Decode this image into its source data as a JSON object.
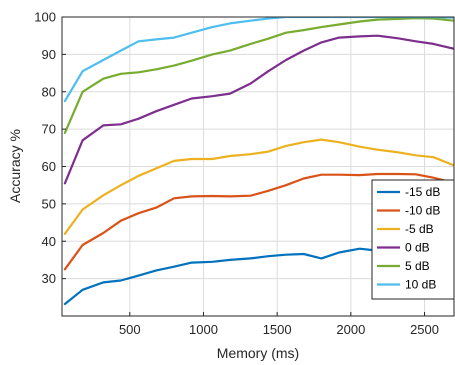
{
  "chart_data": {
    "type": "line",
    "title": "",
    "xlabel": "Memory (ms)",
    "ylabel": "Accuracy %",
    "xlim": [
      40,
      2700
    ],
    "ylim": [
      20,
      100
    ],
    "xticks": [
      500,
      1000,
      1500,
      2000,
      2500
    ],
    "yticks": [
      30,
      40,
      50,
      60,
      70,
      80,
      90,
      100
    ],
    "grid": true,
    "legend_position": "bottom-right",
    "x": [
      60,
      180,
      320,
      440,
      560,
      680,
      800,
      920,
      1060,
      1180,
      1320,
      1440,
      1560,
      1680,
      1800,
      1920,
      2060,
      2180,
      2320,
      2440,
      2560,
      2700
    ],
    "series": [
      {
        "name": "-15 dB",
        "color": "#0072BD",
        "values": [
          23.2,
          27.0,
          29.0,
          29.5,
          30.8,
          32.2,
          33.2,
          34.3,
          34.5,
          35.0,
          35.4,
          36.0,
          36.4,
          36.6,
          35.4,
          37.0,
          38.0,
          37.5,
          37.8,
          38.0,
          37.5,
          37.0
        ]
      },
      {
        "name": "-10 dB",
        "color": "#D95319",
        "values": [
          32.5,
          39.0,
          42.2,
          45.5,
          47.5,
          49.0,
          51.5,
          52.0,
          52.1,
          52.0,
          52.2,
          53.5,
          55.0,
          56.8,
          57.8,
          57.8,
          57.7,
          58.0,
          58.0,
          57.9,
          57.0,
          55.6
        ]
      },
      {
        "name": "-5 dB",
        "color": "#EDB120",
        "values": [
          42.0,
          48.5,
          52.3,
          55.0,
          57.5,
          59.5,
          61.5,
          62.0,
          62.0,
          62.8,
          63.3,
          64.0,
          65.5,
          66.5,
          67.2,
          66.5,
          65.3,
          64.5,
          63.8,
          63.0,
          62.5,
          60.3
        ]
      },
      {
        "name": "0 dB",
        "color": "#7E2F8E",
        "values": [
          55.5,
          67.0,
          71.0,
          71.3,
          72.8,
          74.8,
          76.5,
          78.2,
          78.8,
          79.5,
          82.2,
          85.5,
          88.5,
          91.0,
          93.2,
          94.5,
          94.8,
          95.0,
          94.3,
          93.5,
          92.8,
          91.5
        ]
      },
      {
        "name": "5 dB",
        "color": "#77AC30",
        "values": [
          69.0,
          80.0,
          83.5,
          84.8,
          85.2,
          86.0,
          87.0,
          88.3,
          90.0,
          91.0,
          92.8,
          94.2,
          95.8,
          96.5,
          97.3,
          98.0,
          98.8,
          99.3,
          99.5,
          99.7,
          99.6,
          99.0
        ]
      },
      {
        "name": "10 dB",
        "color": "#4DBEEE",
        "values": [
          77.5,
          85.5,
          88.5,
          91.0,
          93.5,
          94.0,
          94.5,
          95.8,
          97.3,
          98.3,
          99.0,
          99.6,
          100.0,
          100.0,
          100.0,
          100.0,
          100.0,
          100.0,
          100.0,
          100.0,
          100.0,
          99.8
        ]
      }
    ]
  }
}
